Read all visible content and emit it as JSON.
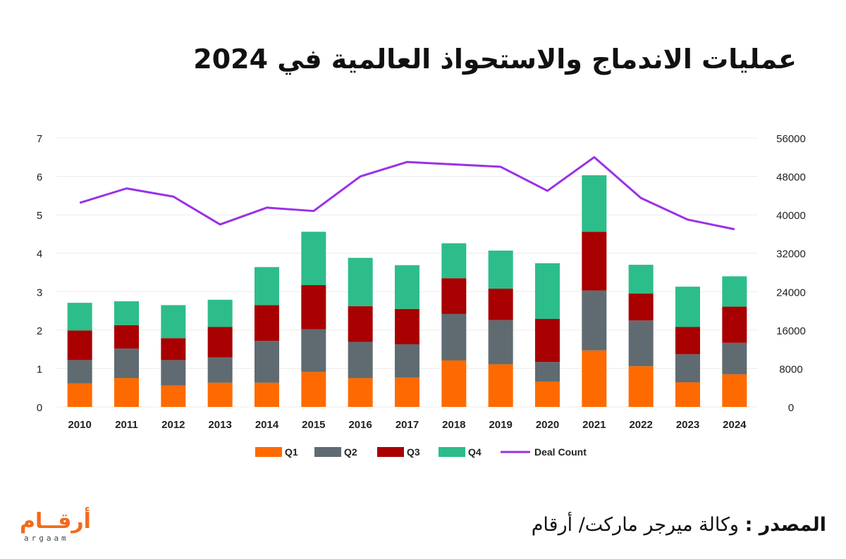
{
  "title": "عمليات الاندماج والاستحواذ العالمية في 2024",
  "source": {
    "label": "المصدر :",
    "text": "وكالة ميرجر ماركت/ أرقام"
  },
  "logo": {
    "arabic": "أرقــام",
    "latin": "argaam"
  },
  "colors": {
    "Q1": "#ff6a00",
    "Q2": "#5f6b71",
    "Q3": "#a80000",
    "Q4": "#2dbd8a",
    "Deal Count": "#9b30e6"
  },
  "chart_data": {
    "type": "bar",
    "stacked": true,
    "categories": [
      "2010",
      "2011",
      "2012",
      "2013",
      "2014",
      "2015",
      "2016",
      "2017",
      "2018",
      "2019",
      "2020",
      "2021",
      "2022",
      "2023",
      "2024"
    ],
    "series": [
      {
        "name": "Q1",
        "values": [
          0.61,
          0.75,
          0.56,
          0.63,
          0.63,
          0.91,
          0.75,
          0.77,
          1.21,
          1.11,
          0.66,
          1.47,
          1.06,
          0.64,
          0.85
        ]
      },
      {
        "name": "Q2",
        "values": [
          0.61,
          0.77,
          0.66,
          0.66,
          1.09,
          1.11,
          0.94,
          0.86,
          1.21,
          1.15,
          0.51,
          1.56,
          1.19,
          0.73,
          0.82
        ]
      },
      {
        "name": "Q3",
        "values": [
          0.77,
          0.61,
          0.57,
          0.79,
          0.93,
          1.15,
          0.93,
          0.92,
          0.93,
          0.82,
          1.12,
          1.53,
          0.7,
          0.71,
          0.94
        ]
      },
      {
        "name": "Q4",
        "values": [
          0.72,
          0.62,
          0.86,
          0.71,
          0.99,
          1.39,
          1.26,
          1.14,
          0.91,
          0.99,
          1.45,
          1.47,
          0.75,
          1.05,
          0.79
        ]
      }
    ],
    "line_series": {
      "name": "Deal Count",
      "axis": "right",
      "values": [
        42500,
        45500,
        43800,
        38000,
        41500,
        40800,
        48000,
        51000,
        50500,
        50000,
        45000,
        52000,
        43500,
        39000,
        37000
      ]
    },
    "y_left": {
      "range": [
        0,
        7
      ],
      "ticks": [
        "0",
        "1",
        "2",
        "3",
        "4",
        "5",
        "6",
        "7"
      ]
    },
    "y_right": {
      "range": [
        0,
        56000
      ],
      "ticks": [
        "0",
        "8000",
        "16000",
        "24000",
        "32000",
        "40000",
        "48000",
        "56000"
      ]
    },
    "grid": true,
    "legend": {
      "position": "bottom",
      "entries": [
        "Q1",
        "Q2",
        "Q3",
        "Q4",
        "Deal Count"
      ]
    }
  }
}
